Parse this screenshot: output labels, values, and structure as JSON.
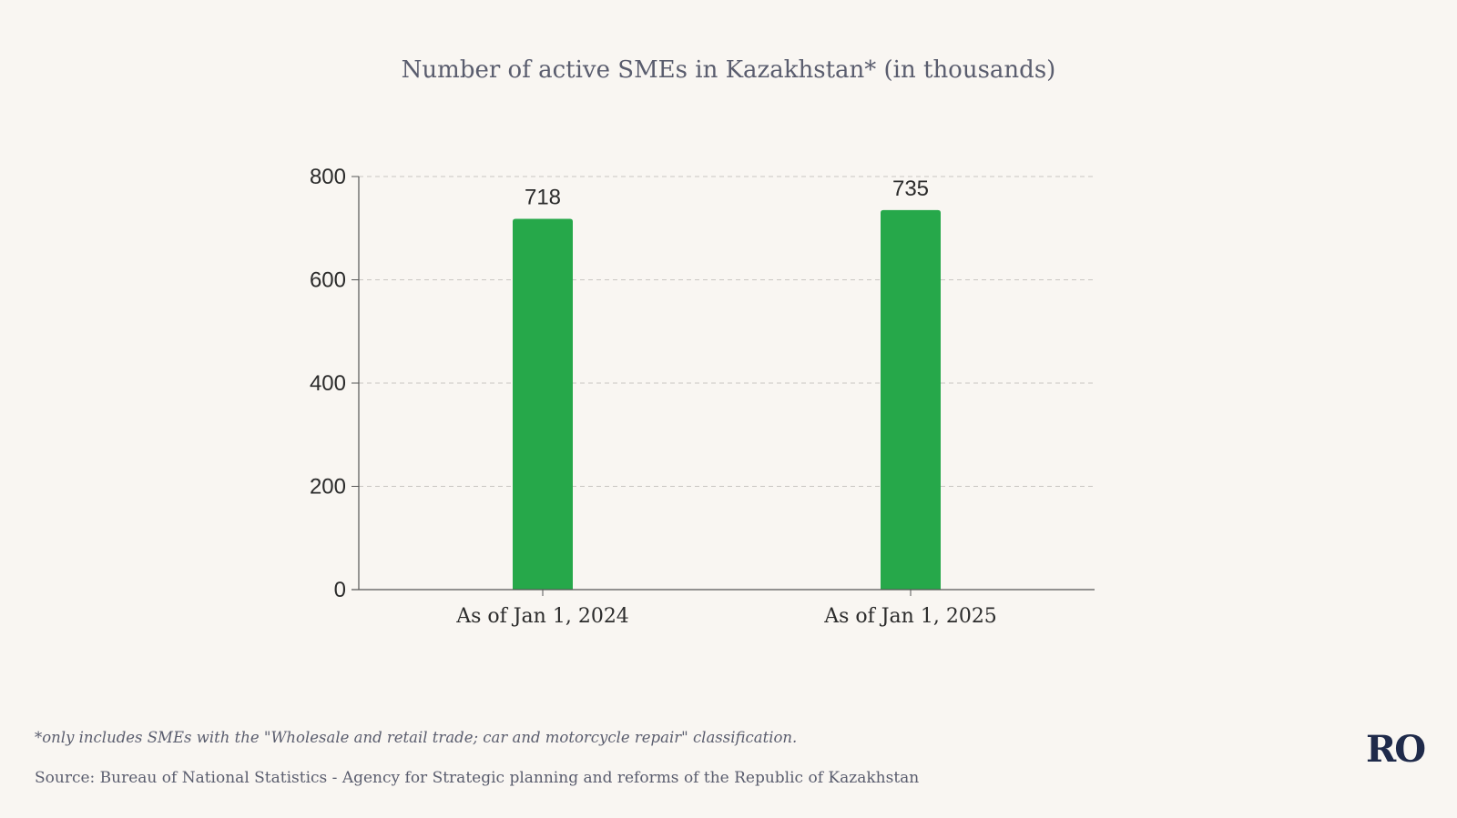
{
  "chart_data": {
    "type": "bar",
    "title": "Number of active SMEs in Kazakhstan* (in thousands)",
    "categories": [
      "As of Jan 1, 2024",
      "As of Jan 1, 2025"
    ],
    "values": [
      718,
      735
    ],
    "data_labels": [
      "718",
      "735"
    ],
    "xlabel": "",
    "ylabel": "",
    "ylim": [
      0,
      800
    ],
    "yticks": [
      0,
      200,
      400,
      600,
      800
    ],
    "grid": true,
    "legend": "none",
    "bar_color": "#26a84a"
  },
  "footnote": "*only includes SMEs with the \"Wholesale and retail trade; car and motorcycle repair\" classification.",
  "source": "Source: Bureau of National Statistics - Agency for Strategic planning and reforms of the Republic of Kazakhstan",
  "logo_text": "RO",
  "colors": {
    "background": "#f9f6f2",
    "text": "#5a5d6e",
    "bar": "#26a84a",
    "logo": "#1f2a4a"
  }
}
